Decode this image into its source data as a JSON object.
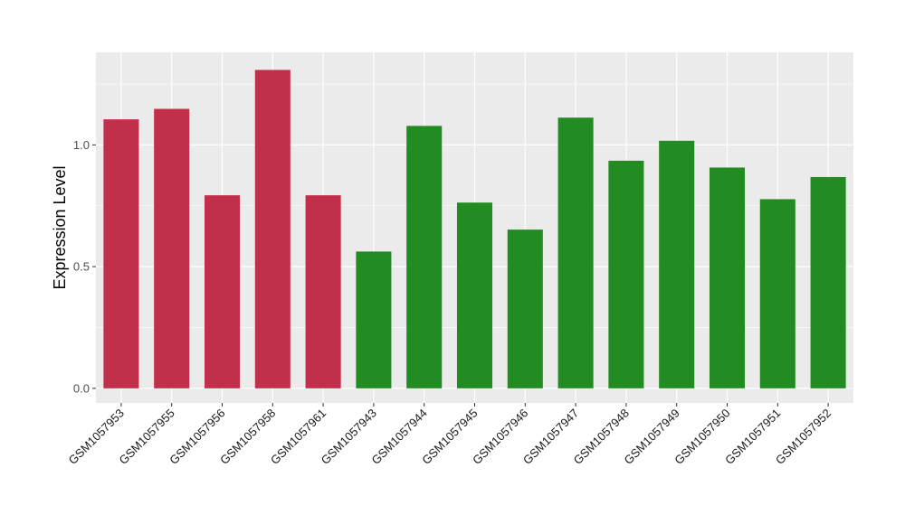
{
  "chart_data": {
    "type": "bar",
    "title": "",
    "xlabel": "",
    "ylabel": "Expression Level",
    "ylim": [
      -0.06,
      1.38
    ],
    "yticks": [
      0.0,
      0.5,
      1.0
    ],
    "ytick_labels": [
      "0.0",
      "0.5",
      "1.0"
    ],
    "grid": true,
    "categories": [
      "GSM1057953",
      "GSM1057955",
      "GSM1057956",
      "GSM1057958",
      "GSM1057961",
      "GSM1057943",
      "GSM1057944",
      "GSM1057945",
      "GSM1057946",
      "GSM1057947",
      "GSM1057948",
      "GSM1057949",
      "GSM1057950",
      "GSM1057951",
      "GSM1057952"
    ],
    "values": [
      1.105,
      1.148,
      0.793,
      1.308,
      0.793,
      0.562,
      1.078,
      0.763,
      0.652,
      1.112,
      0.935,
      1.017,
      0.907,
      0.777,
      0.868
    ],
    "group_colors": [
      "#c0304a",
      "#c0304a",
      "#c0304a",
      "#c0304a",
      "#c0304a",
      "#228b22",
      "#228b22",
      "#228b22",
      "#228b22",
      "#228b22",
      "#228b22",
      "#228b22",
      "#228b22",
      "#228b22",
      "#228b22"
    ],
    "panel_background": "#ebebeb",
    "grid_color": "#ffffff"
  }
}
